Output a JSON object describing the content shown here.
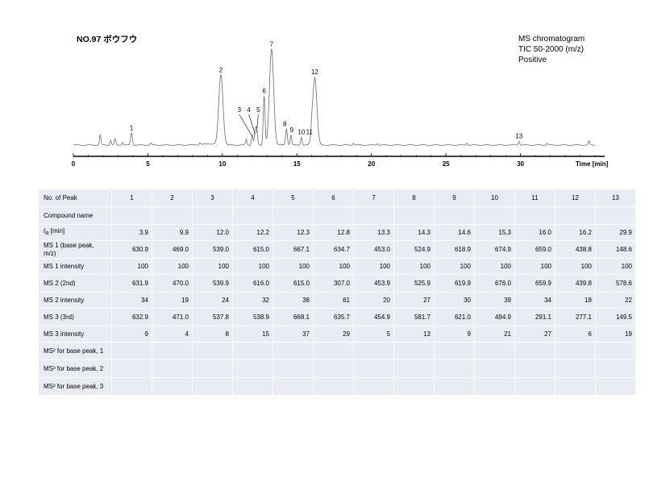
{
  "header": {
    "title": "NO.97 ボウフウ",
    "info_lines": [
      "MS chromatogram",
      "TIC 50-2000 (m/z)",
      "Positive"
    ]
  },
  "chart_data": {
    "type": "line",
    "title": "NO.97 ボウフウ",
    "xlabel": "Time [min]",
    "ylabel": "",
    "xlim": [
      0,
      35
    ],
    "ylim": [
      0,
      100
    ],
    "x_ticks": [
      0,
      5,
      10,
      15,
      20,
      25,
      30
    ],
    "grid": false,
    "peaks": [
      {
        "label": "1",
        "t": 3.9,
        "height": 12
      },
      {
        "label": "2",
        "t": 9.9,
        "height": 70
      },
      {
        "label": "3",
        "t": 12.0,
        "height": 10
      },
      {
        "label": "4",
        "t": 12.2,
        "height": 12
      },
      {
        "label": "5",
        "t": 12.3,
        "height": 14
      },
      {
        "label": "6",
        "t": 12.8,
        "height": 49
      },
      {
        "label": "7",
        "t": 13.3,
        "height": 96
      },
      {
        "label": "8",
        "t": 14.3,
        "height": 16
      },
      {
        "label": "9",
        "t": 14.6,
        "height": 10
      },
      {
        "label": "10",
        "t": 15.3,
        "height": 8
      },
      {
        "label": "11",
        "t": 16.0,
        "height": 8
      },
      {
        "label": "12",
        "t": 16.2,
        "height": 68
      },
      {
        "label": "13",
        "t": 29.9,
        "height": 4
      }
    ],
    "minor_peaks": [
      {
        "t": 1.8,
        "height": 10
      },
      {
        "t": 2.5,
        "height": 5
      },
      {
        "t": 2.8,
        "height": 6
      },
      {
        "t": 3.3,
        "height": 3
      },
      {
        "t": 5.2,
        "height": 2
      },
      {
        "t": 8.5,
        "height": 2
      },
      {
        "t": 11.6,
        "height": 6
      },
      {
        "t": 18.8,
        "height": 2
      },
      {
        "t": 20.4,
        "height": 1.5
      },
      {
        "t": 26.4,
        "height": 2
      },
      {
        "t": 31.8,
        "height": 2
      },
      {
        "t": 34.6,
        "height": 4
      }
    ]
  },
  "table": {
    "header_label": "No. of Peak",
    "columns": [
      "1",
      "2",
      "3",
      "4",
      "5",
      "6",
      "7",
      "8",
      "9",
      "10",
      "11",
      "12",
      "13"
    ],
    "rows": [
      {
        "label": "Compound name",
        "values": [
          "",
          "",
          "",
          "",
          "",
          "",
          "",
          "",
          "",
          "",
          "",
          "",
          ""
        ]
      },
      {
        "label": "tR [min]",
        "label_main": "t",
        "label_sub": "R",
        "label_rest": " [min]",
        "values": [
          "3.9",
          "9.9",
          "12.0",
          "12.2",
          "12.3",
          "12.8",
          "13.3",
          "14.3",
          "14.6",
          "15.3",
          "16.0",
          "16.2",
          "29.9"
        ]
      },
      {
        "label": "MS 1 (base peak, m/z)",
        "values": [
          "630.9",
          "469.0",
          "539.0",
          "615.0",
          "667.1",
          "634.7",
          "453.0",
          "524.9",
          "618.9",
          "674.9",
          "659.0",
          "438.8",
          "148.6"
        ]
      },
      {
        "label": "MS 1 intensity",
        "values": [
          "100",
          "100",
          "100",
          "100",
          "100",
          "100",
          "100",
          "100",
          "100",
          "100",
          "100",
          "100",
          "100"
        ]
      },
      {
        "label": "MS 2 (2nd)",
        "values": [
          "631.9",
          "470.0",
          "539.9",
          "616.0",
          "615.0",
          "307.0",
          "453.9",
          "525.9",
          "619.9",
          "676.0",
          "659.9",
          "439.8",
          "578.6"
        ]
      },
      {
        "label": "MS 2 intensity",
        "values": [
          "34",
          "19",
          "24",
          "32",
          "38",
          "61",
          "20",
          "27",
          "30",
          "39",
          "34",
          "18",
          "22"
        ]
      },
      {
        "label": "MS 3 (3rd)",
        "values": [
          "632.9",
          "471.0",
          "537.8",
          "538.9",
          "668.1",
          "635.7",
          "454.9",
          "581.7",
          "621.0",
          "494.9",
          "291.1",
          "277.1",
          "149.5"
        ]
      },
      {
        "label": "MS 3 intensity",
        "values": [
          "9",
          "4",
          "8",
          "15",
          "37",
          "29",
          "5",
          "13",
          "9",
          "21",
          "27",
          "6",
          "19"
        ]
      },
      {
        "label": "MS² for base peak, 1",
        "values": [
          "",
          "",
          "",
          "",
          "",
          "",
          "",
          "",
          "",
          "",
          "",
          "",
          ""
        ]
      },
      {
        "label": "MS² for base peak, 2",
        "values": [
          "",
          "",
          "",
          "",
          "",
          "",
          "",
          "",
          "",
          "",
          "",
          "",
          ""
        ]
      },
      {
        "label": "MS² for base peak, 3",
        "values": [
          "",
          "",
          "",
          "",
          "",
          "",
          "",
          "",
          "",
          "",
          "",
          "",
          ""
        ]
      }
    ]
  }
}
